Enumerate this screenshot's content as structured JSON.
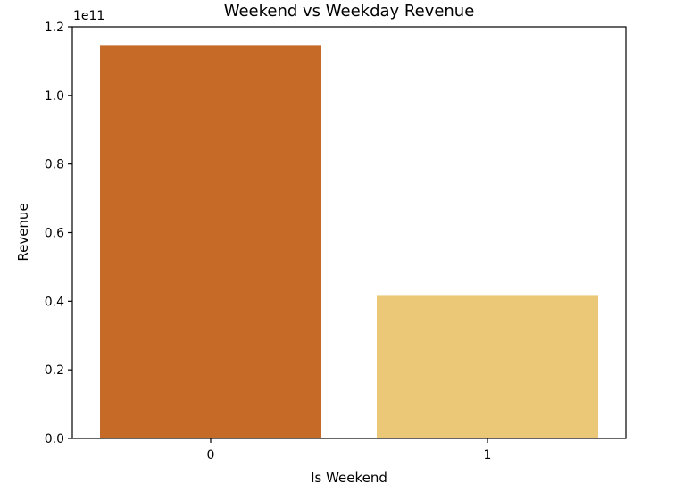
{
  "chart_data": {
    "type": "bar",
    "title": "Weekend vs Weekday Revenue",
    "xlabel": "Is Weekend",
    "ylabel": "Revenue",
    "categories": [
      "0",
      "1"
    ],
    "values": [
      114700000000,
      41800000000
    ],
    "colors": [
      "#c66a28",
      "#ebc878"
    ],
    "ylim": [
      0,
      120000000000
    ],
    "yticks": [
      0,
      20000000000,
      40000000000,
      60000000000,
      80000000000,
      100000000000,
      120000000000
    ],
    "ytick_labels": [
      "0.0",
      "0.2",
      "0.4",
      "0.6",
      "0.8",
      "1.0",
      "1.2"
    ],
    "y_scale_label": "1e11",
    "grid": false,
    "legend": "none"
  }
}
